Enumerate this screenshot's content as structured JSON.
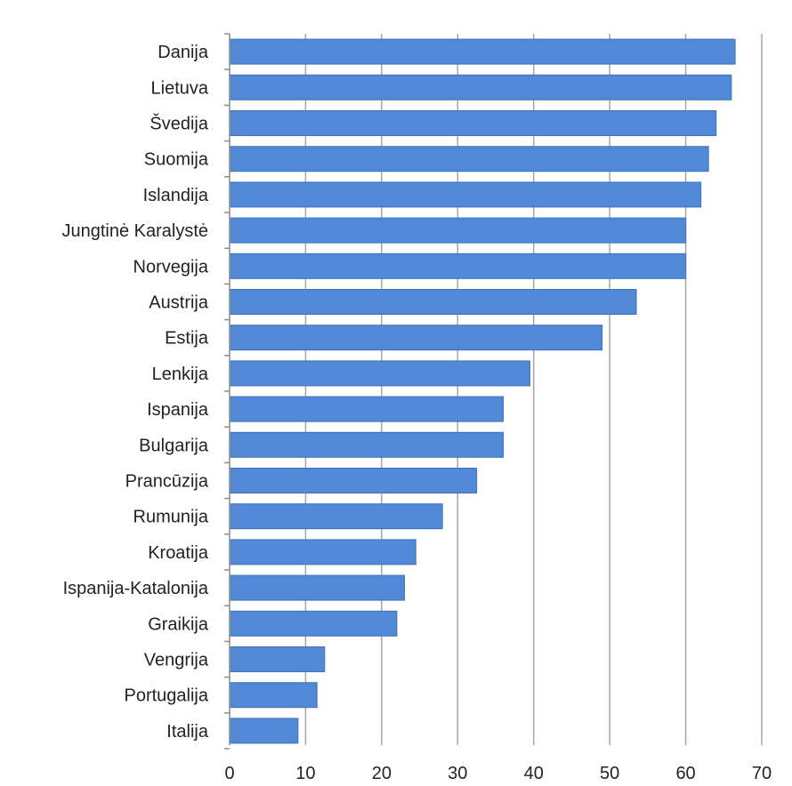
{
  "chart_data": {
    "type": "bar",
    "orientation": "horizontal",
    "categories": [
      "Danija",
      "Lietuva",
      "Švedija",
      "Suomija",
      "Islandija",
      "Jungtinė Karalystė",
      "Norvegija",
      "Austrija",
      "Estija",
      "Lenkija",
      "Ispanija",
      "Bulgarija",
      "Prancūzija",
      "Rumunija",
      "Kroatija",
      "Ispanija-Katalonija",
      "Graikija",
      "Vengrija",
      "Portugalija",
      "Italija"
    ],
    "values": [
      66.5,
      66,
      64,
      63,
      62,
      60,
      60,
      53.5,
      49,
      39.5,
      36,
      36,
      32.5,
      28,
      24.5,
      23,
      22,
      12.5,
      11.5,
      9
    ],
    "xlim": [
      0,
      70
    ],
    "xticks": [
      0,
      10,
      20,
      30,
      40,
      50,
      60,
      70
    ],
    "grid": "vertical",
    "legend": "none",
    "bar_color": "#5189d6",
    "bar_edge_color": "#3f74bd",
    "grid_color": "#a6a6a6",
    "axis_color": "#8c8c8c"
  }
}
